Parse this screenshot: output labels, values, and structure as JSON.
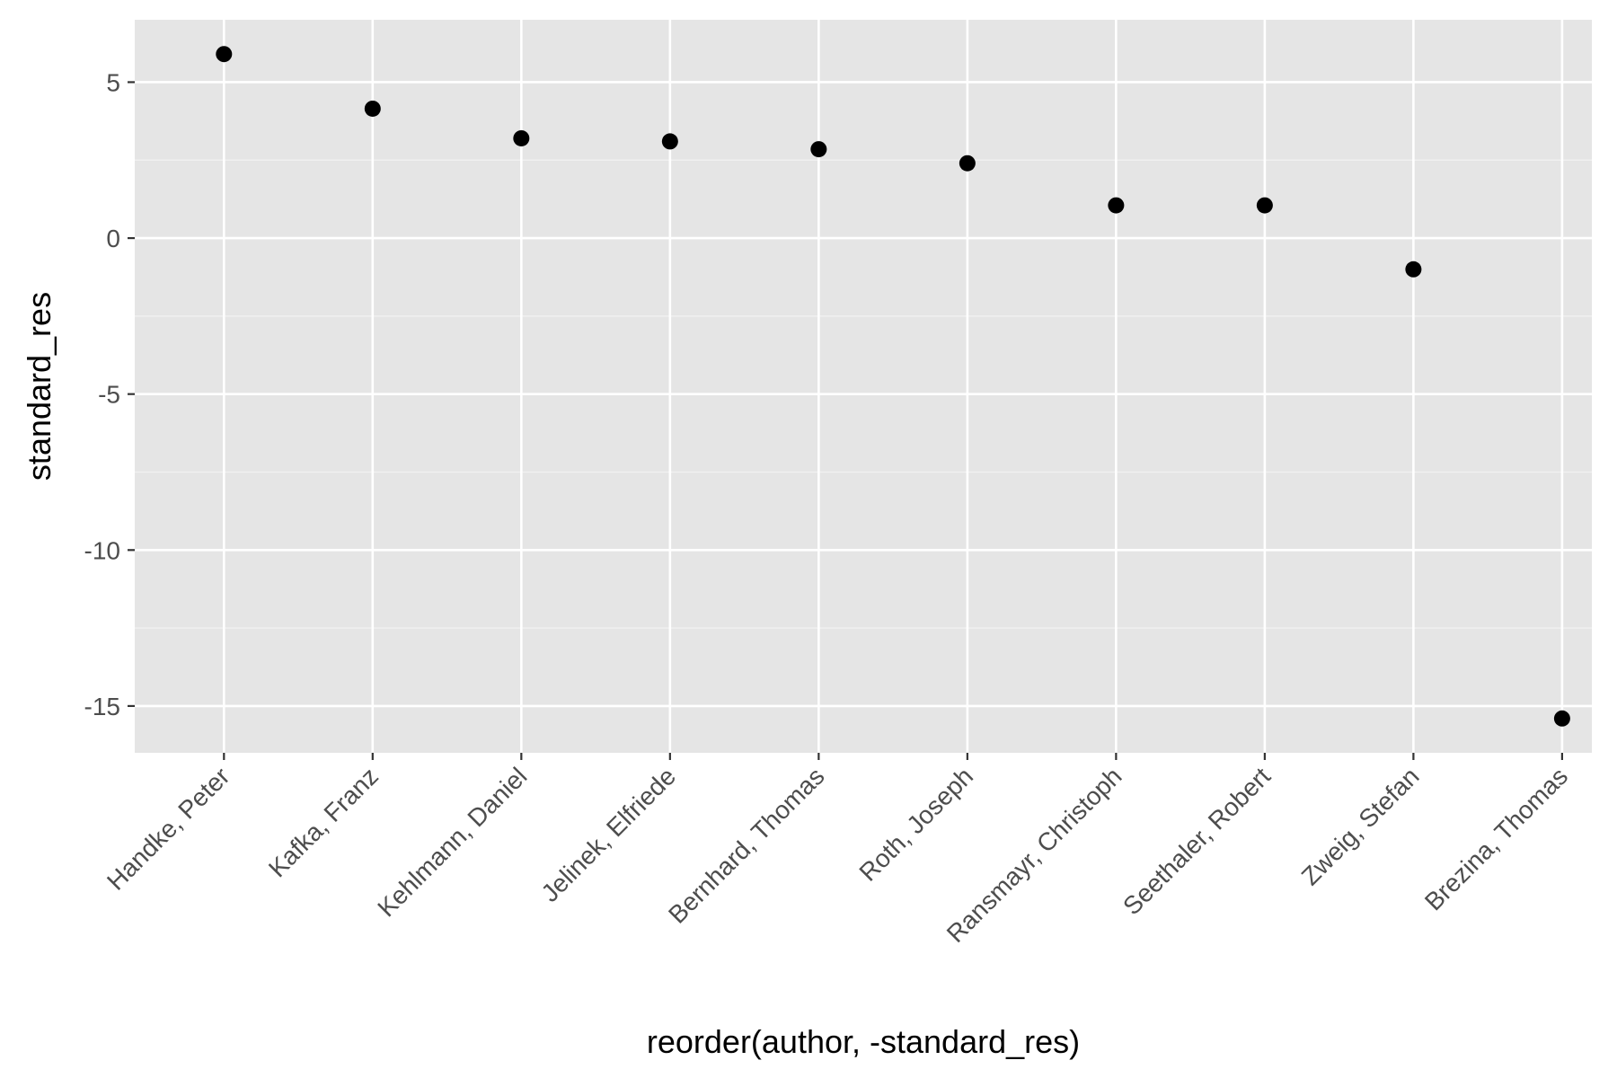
{
  "chart_data": {
    "type": "scatter",
    "title": "",
    "xlabel": "reorder(author, -standard_res)",
    "ylabel": "standard_res",
    "categories": [
      "Handke, Peter",
      "Kafka, Franz",
      "Kehlmann, Daniel",
      "Jelinek, Elfriede",
      "Bernhard, Thomas",
      "Roth, Joseph",
      "Ransmayr, Christoph",
      "Seethaler, Robert",
      "Zweig, Stefan",
      "Brezina, Thomas"
    ],
    "values": [
      5.9,
      4.15,
      3.2,
      3.1,
      2.85,
      2.4,
      1.05,
      1.05,
      -1.0,
      -15.4
    ],
    "ylim": [
      -16.5,
      7
    ],
    "yticks": [
      5,
      0,
      -5,
      -10,
      -15
    ],
    "grid": true,
    "legend": "none",
    "colors": {
      "panel": "#e5e5e5",
      "grid_major": "#ffffff",
      "grid_minor": "#f2f2f2",
      "point": "#000000",
      "tick_text": "#4d4d4d",
      "axis_title": "#000000",
      "tick_mark": "#333333"
    }
  }
}
